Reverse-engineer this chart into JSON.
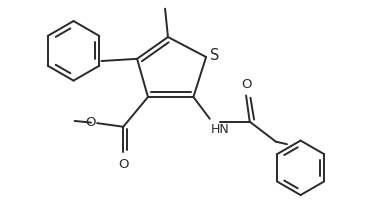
{
  "bg_color": "#ffffff",
  "line_color": "#2a2a2a",
  "line_width": 1.4,
  "font_size": 8.5,
  "figsize": [
    3.65,
    2.23
  ],
  "dpi": 100,
  "xlim": [
    0,
    10.0
  ],
  "ylim": [
    0,
    6.1
  ]
}
